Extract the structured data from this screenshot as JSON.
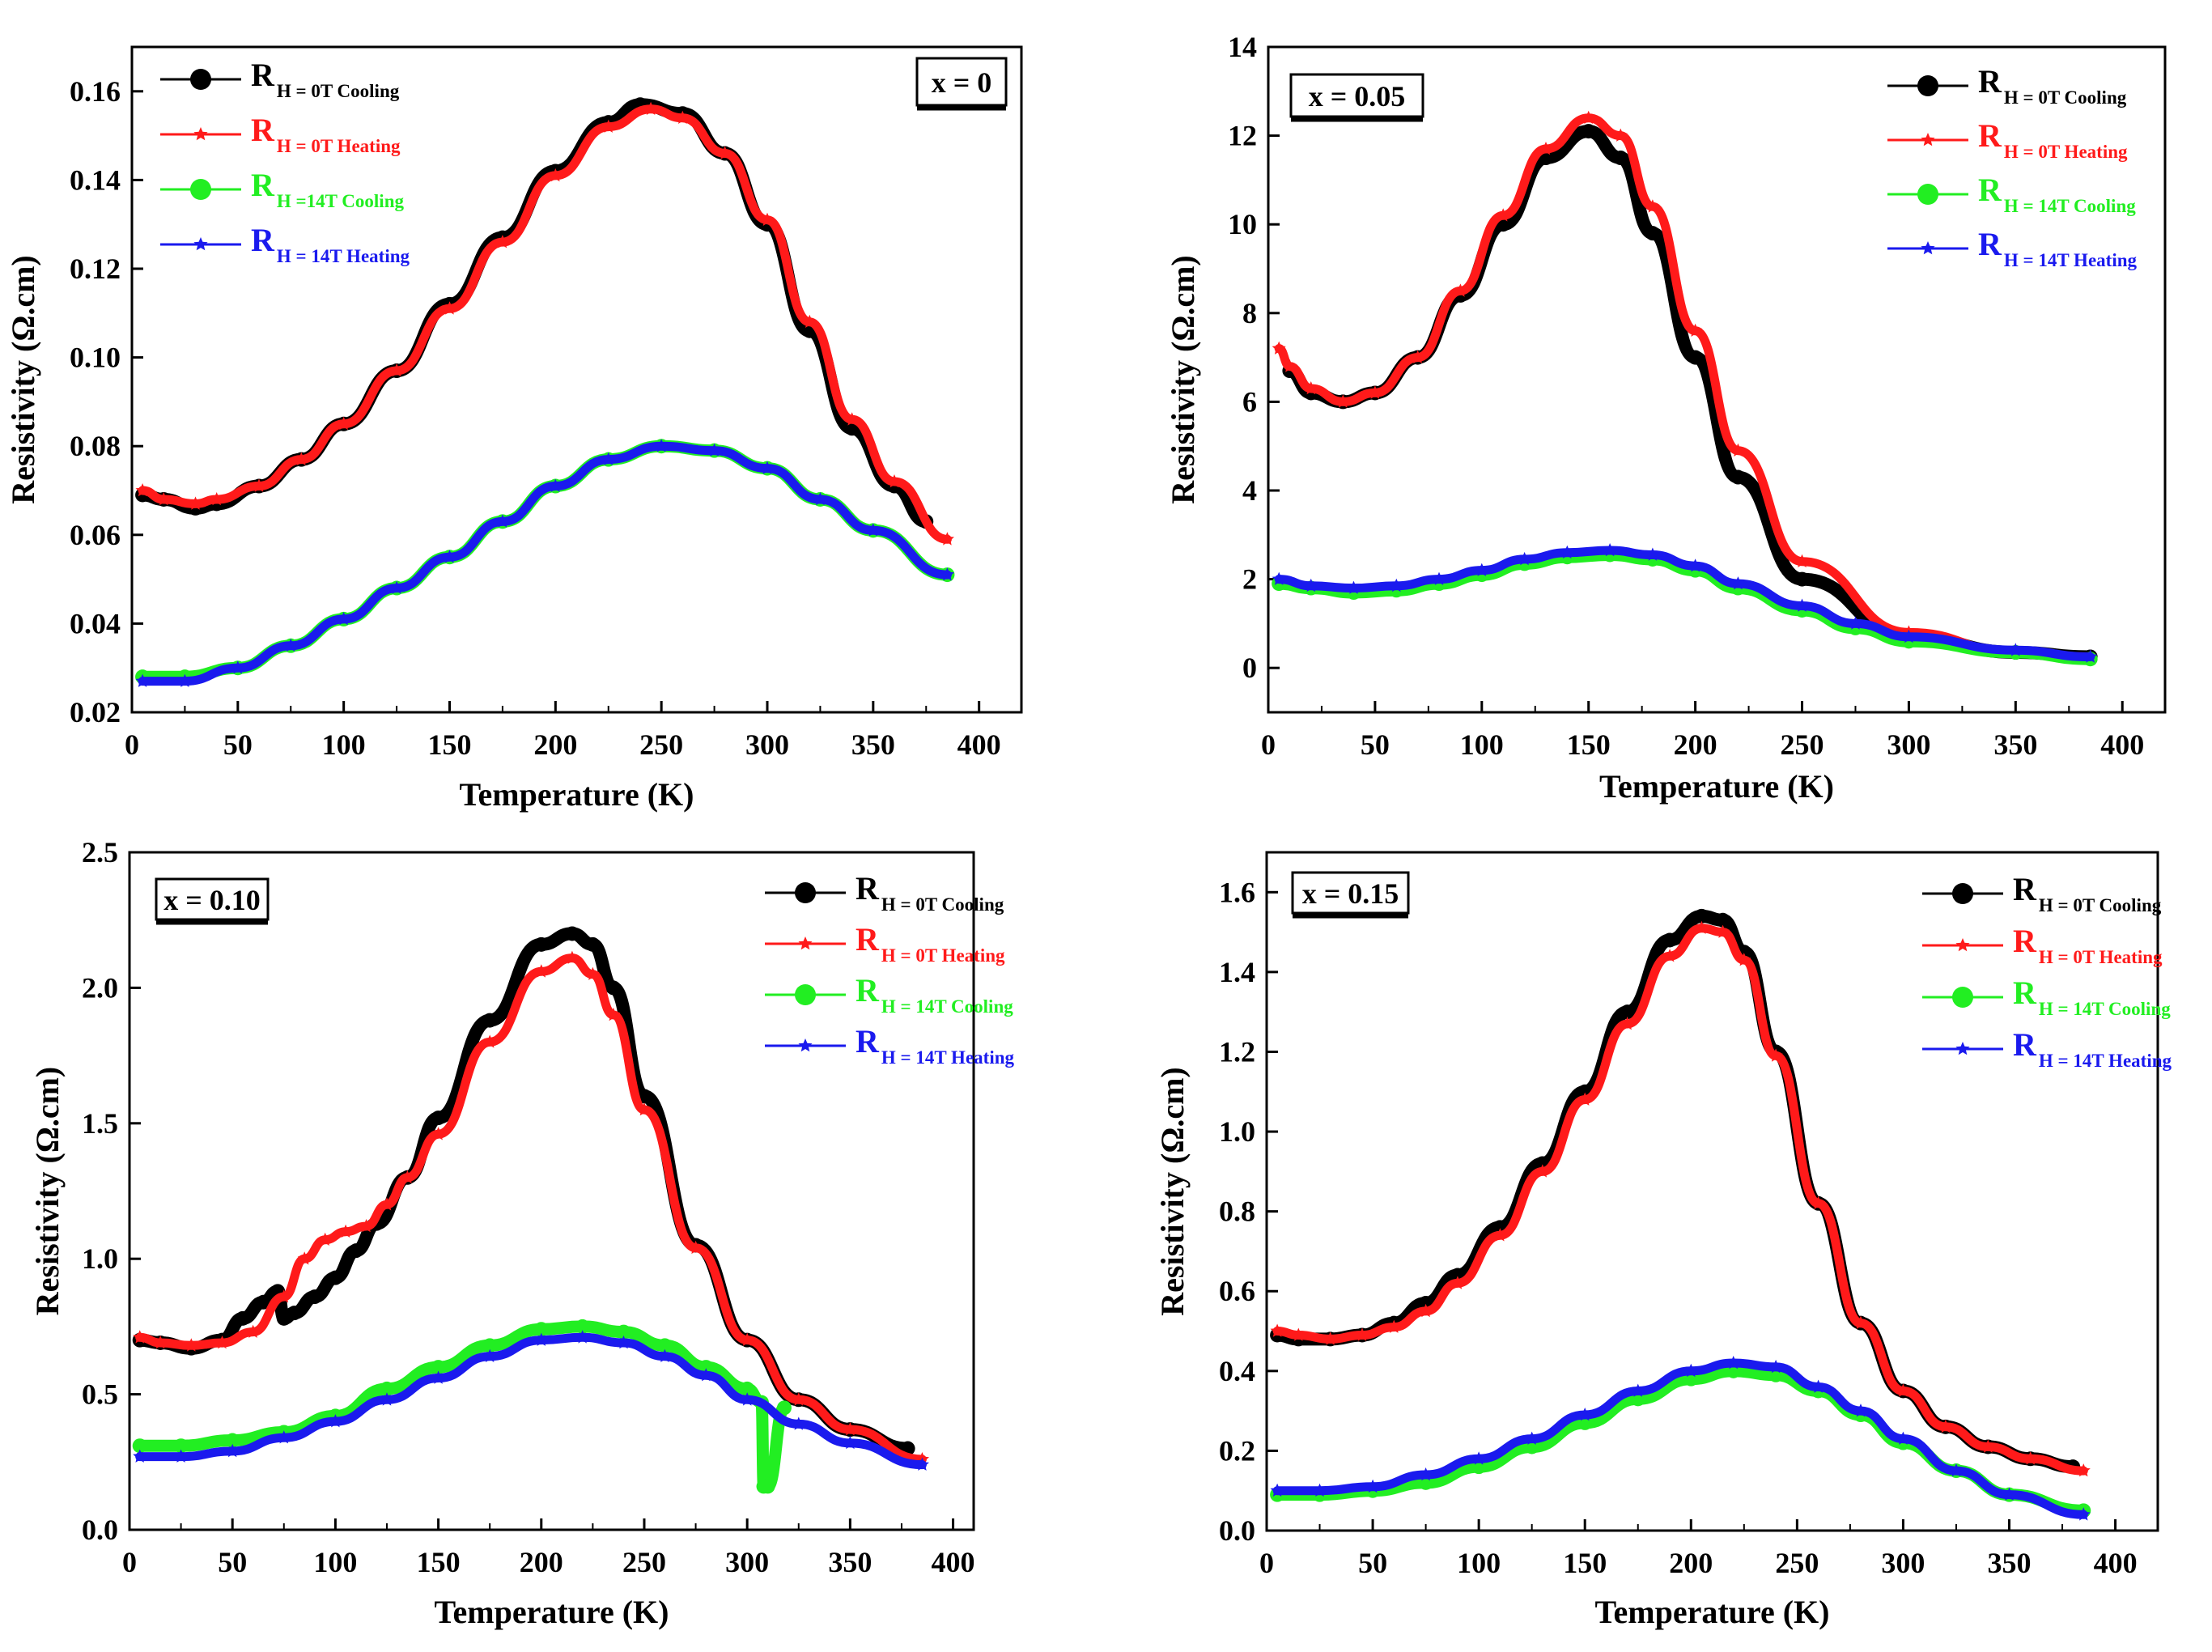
{
  "colors": {
    "cooling_0T": "#000000",
    "heating_0T": "#ff1a1a",
    "cooling_14T": "#22ee22",
    "heating_14T": "#1a1aee"
  },
  "legend_labels": {
    "r": "R",
    "cooling_0T": "H = 0T Cooling",
    "heating_0T": "H = 0T Heating",
    "cooling_14T_a": "H =14T Cooling",
    "cooling_14T_b": "H = 14T Cooling",
    "heating_14T": "H = 14T Heating",
    "heating_14T_c": "H = 14T Heating"
  },
  "chart_data": [
    {
      "type": "line",
      "panel": "x = 0",
      "xlabel": "Temperature (K)",
      "ylabel": "Resistivity (Ω.cm)",
      "xlim": [
        0,
        420
      ],
      "ylim": [
        0.02,
        0.17
      ],
      "xticks": [
        "0",
        "50",
        "100",
        "150",
        "200",
        "250",
        "300",
        "350",
        "400"
      ],
      "yticks": [
        "0.02",
        "0.04",
        "0.06",
        "0.08",
        "0.10",
        "0.12",
        "0.14",
        "0.16"
      ],
      "legend": [
        "H = 0T Cooling",
        "H = 0T Heating",
        "H =14T Cooling",
        "H = 14T Heating"
      ],
      "series": [
        {
          "name": "H = 0T Cooling",
          "x": [
            5,
            15,
            30,
            40,
            60,
            80,
            100,
            125,
            150,
            175,
            200,
            225,
            240,
            260,
            280,
            300,
            320,
            340,
            360,
            375
          ],
          "y": [
            0.069,
            0.068,
            0.066,
            0.067,
            0.071,
            0.077,
            0.085,
            0.097,
            0.112,
            0.127,
            0.142,
            0.153,
            0.157,
            0.155,
            0.146,
            0.13,
            0.106,
            0.084,
            0.071,
            0.063
          ]
        },
        {
          "name": "H = 0T Heating",
          "x": [
            5,
            15,
            30,
            40,
            60,
            80,
            100,
            125,
            150,
            175,
            200,
            225,
            245,
            260,
            280,
            300,
            320,
            340,
            360,
            385
          ],
          "y": [
            0.07,
            0.068,
            0.067,
            0.068,
            0.071,
            0.077,
            0.085,
            0.097,
            0.111,
            0.126,
            0.141,
            0.152,
            0.156,
            0.154,
            0.146,
            0.131,
            0.108,
            0.086,
            0.072,
            0.059
          ]
        },
        {
          "name": "H =14T Cooling",
          "x": [
            5,
            25,
            50,
            75,
            100,
            125,
            150,
            175,
            200,
            225,
            250,
            275,
            300,
            325,
            350,
            385
          ],
          "y": [
            0.028,
            0.028,
            0.03,
            0.035,
            0.041,
            0.048,
            0.055,
            0.063,
            0.071,
            0.077,
            0.08,
            0.079,
            0.075,
            0.068,
            0.061,
            0.051
          ]
        },
        {
          "name": "H = 14T Heating",
          "x": [
            5,
            25,
            50,
            75,
            100,
            125,
            150,
            175,
            200,
            225,
            250,
            275,
            300,
            325,
            350,
            385
          ],
          "y": [
            0.027,
            0.027,
            0.03,
            0.035,
            0.041,
            0.048,
            0.055,
            0.063,
            0.071,
            0.077,
            0.08,
            0.079,
            0.075,
            0.068,
            0.061,
            0.051
          ]
        }
      ]
    },
    {
      "type": "line",
      "panel": "x = 0.05",
      "xlabel": "Temperature (K)",
      "ylabel": "Resistivity (Ω.cm)",
      "xlim": [
        0,
        420
      ],
      "ylim": [
        -1,
        14
      ],
      "xticks": [
        "0",
        "50",
        "100",
        "150",
        "200",
        "250",
        "300",
        "350",
        "400"
      ],
      "yticks": [
        "0",
        "2",
        "4",
        "6",
        "8",
        "10",
        "12",
        "14"
      ],
      "legend": [
        "H = 0T Cooling",
        "H = 0T Heating",
        "H = 14T Cooling",
        "H = 14T Heating"
      ],
      "series": [
        {
          "name": "H = 0T Cooling",
          "x": [
            10,
            20,
            35,
            50,
            70,
            90,
            110,
            130,
            150,
            165,
            180,
            200,
            220,
            250,
            300,
            350,
            385
          ],
          "y": [
            6.7,
            6.2,
            6.0,
            6.2,
            7.0,
            8.4,
            10.0,
            11.5,
            12.1,
            11.5,
            9.8,
            7.0,
            4.3,
            2.0,
            0.7,
            0.35,
            0.25
          ]
        },
        {
          "name": "H = 0T Heating",
          "x": [
            5,
            10,
            20,
            35,
            50,
            70,
            90,
            110,
            130,
            150,
            165,
            180,
            200,
            220,
            250,
            300,
            350,
            385
          ],
          "y": [
            7.2,
            6.8,
            6.3,
            6.0,
            6.2,
            7.0,
            8.5,
            10.2,
            11.7,
            12.4,
            12.0,
            10.4,
            7.6,
            4.9,
            2.4,
            0.8,
            0.35,
            0.25
          ]
        },
        {
          "name": "H = 14T Cooling",
          "x": [
            5,
            20,
            40,
            60,
            80,
            100,
            120,
            140,
            160,
            180,
            200,
            220,
            250,
            275,
            300,
            350,
            385
          ],
          "y": [
            1.9,
            1.8,
            1.7,
            1.75,
            1.9,
            2.1,
            2.35,
            2.5,
            2.55,
            2.45,
            2.2,
            1.8,
            1.3,
            0.9,
            0.6,
            0.35,
            0.2
          ]
        },
        {
          "name": "H = 14T Heating",
          "x": [
            5,
            20,
            40,
            60,
            80,
            100,
            120,
            140,
            160,
            180,
            200,
            220,
            250,
            275,
            300,
            350,
            385
          ],
          "y": [
            2.0,
            1.85,
            1.8,
            1.85,
            2.0,
            2.2,
            2.45,
            2.6,
            2.65,
            2.55,
            2.3,
            1.9,
            1.4,
            1.0,
            0.7,
            0.4,
            0.25
          ]
        }
      ]
    },
    {
      "type": "line",
      "panel": "x = 0.10",
      "xlabel": "Temperature (K)",
      "ylabel": "Resistivity (Ω.cm)",
      "xlim": [
        0,
        410
      ],
      "ylim": [
        0,
        2.5
      ],
      "xticks": [
        "0",
        "50",
        "100",
        "150",
        "200",
        "250",
        "300",
        "350",
        "400"
      ],
      "yticks": [
        "0.0",
        "0.5",
        "1.0",
        "1.5",
        "2.0",
        "2.5"
      ],
      "legend": [
        "H = 0T Cooling",
        "H = 0T Heating",
        "H = 14T Cooling",
        "H = 14T Heating"
      ],
      "series": [
        {
          "name": "H = 0T Cooling",
          "x": [
            5,
            15,
            30,
            45,
            55,
            65,
            72,
            75,
            80,
            90,
            100,
            110,
            120,
            135,
            150,
            175,
            200,
            215,
            225,
            235,
            250,
            275,
            300,
            325,
            350,
            378
          ],
          "y": [
            0.7,
            0.69,
            0.67,
            0.7,
            0.78,
            0.84,
            0.88,
            0.78,
            0.8,
            0.86,
            0.93,
            1.03,
            1.13,
            1.3,
            1.52,
            1.88,
            2.16,
            2.2,
            2.16,
            2.0,
            1.6,
            1.05,
            0.7,
            0.48,
            0.37,
            0.3
          ]
        },
        {
          "name": "H = 0T Heating",
          "x": [
            5,
            15,
            30,
            45,
            60,
            75,
            85,
            95,
            105,
            115,
            125,
            135,
            150,
            175,
            200,
            215,
            225,
            235,
            250,
            275,
            300,
            325,
            350,
            385
          ],
          "y": [
            0.71,
            0.69,
            0.68,
            0.69,
            0.73,
            0.86,
            1.0,
            1.07,
            1.1,
            1.12,
            1.2,
            1.3,
            1.46,
            1.8,
            2.06,
            2.11,
            2.05,
            1.9,
            1.55,
            1.04,
            0.7,
            0.48,
            0.37,
            0.26
          ]
        },
        {
          "name": "H = 14T Cooling",
          "x": [
            5,
            25,
            50,
            75,
            100,
            125,
            150,
            175,
            200,
            220,
            240,
            260,
            280,
            300,
            307,
            308,
            310,
            318
          ],
          "y": [
            0.31,
            0.31,
            0.33,
            0.36,
            0.42,
            0.52,
            0.6,
            0.68,
            0.74,
            0.75,
            0.73,
            0.68,
            0.6,
            0.52,
            0.47,
            0.16,
            0.16,
            0.45
          ]
        },
        {
          "name": "H = 14T Heating",
          "x": [
            5,
            25,
            50,
            75,
            100,
            125,
            150,
            175,
            200,
            220,
            240,
            260,
            280,
            300,
            325,
            350,
            385
          ],
          "y": [
            0.27,
            0.27,
            0.29,
            0.34,
            0.4,
            0.48,
            0.56,
            0.64,
            0.7,
            0.71,
            0.69,
            0.64,
            0.57,
            0.48,
            0.39,
            0.32,
            0.24
          ]
        }
      ]
    },
    {
      "type": "line",
      "panel": "x = 0.15",
      "xlabel": "Temperature (K)",
      "ylabel": "Resistivity (Ω.cm)",
      "xlim": [
        0,
        420
      ],
      "ylim": [
        0,
        1.7
      ],
      "xticks": [
        "0",
        "50",
        "100",
        "150",
        "200",
        "250",
        "300",
        "350",
        "400"
      ],
      "yticks": [
        "0.0",
        "0.2",
        "0.4",
        "0.6",
        "0.8",
        "1.0",
        "1.2",
        "1.4",
        "1.6"
      ],
      "legend": [
        "H = 0T Cooling",
        "H = 0T Heating",
        "H = 14T Cooling",
        "H = 14T Heating"
      ],
      "series": [
        {
          "name": "H = 0T Cooling",
          "x": [
            5,
            15,
            30,
            45,
            60,
            75,
            90,
            110,
            130,
            150,
            170,
            190,
            205,
            215,
            225,
            240,
            260,
            280,
            300,
            320,
            340,
            360,
            380
          ],
          "y": [
            0.49,
            0.48,
            0.48,
            0.49,
            0.52,
            0.57,
            0.64,
            0.76,
            0.92,
            1.1,
            1.3,
            1.48,
            1.54,
            1.53,
            1.45,
            1.2,
            0.82,
            0.52,
            0.35,
            0.26,
            0.21,
            0.18,
            0.16
          ]
        },
        {
          "name": "H = 0T Heating",
          "x": [
            5,
            15,
            30,
            45,
            60,
            75,
            90,
            110,
            130,
            150,
            170,
            190,
            205,
            215,
            225,
            240,
            260,
            280,
            300,
            320,
            340,
            360,
            385
          ],
          "y": [
            0.5,
            0.49,
            0.48,
            0.49,
            0.51,
            0.55,
            0.62,
            0.74,
            0.9,
            1.08,
            1.27,
            1.44,
            1.51,
            1.5,
            1.43,
            1.19,
            0.82,
            0.52,
            0.35,
            0.26,
            0.21,
            0.18,
            0.15
          ]
        },
        {
          "name": "H = 14T Cooling",
          "x": [
            5,
            25,
            50,
            75,
            100,
            125,
            150,
            175,
            200,
            220,
            240,
            260,
            280,
            300,
            325,
            350,
            385
          ],
          "y": [
            0.09,
            0.09,
            0.1,
            0.12,
            0.16,
            0.21,
            0.27,
            0.33,
            0.38,
            0.4,
            0.39,
            0.35,
            0.29,
            0.22,
            0.15,
            0.09,
            0.05
          ]
        },
        {
          "name": "H = 14T Heating",
          "x": [
            5,
            25,
            50,
            75,
            100,
            125,
            150,
            175,
            200,
            220,
            240,
            260,
            280,
            300,
            325,
            350,
            385
          ],
          "y": [
            0.1,
            0.1,
            0.11,
            0.14,
            0.18,
            0.23,
            0.29,
            0.35,
            0.4,
            0.42,
            0.41,
            0.36,
            0.3,
            0.23,
            0.15,
            0.09,
            0.04
          ]
        }
      ]
    }
  ]
}
